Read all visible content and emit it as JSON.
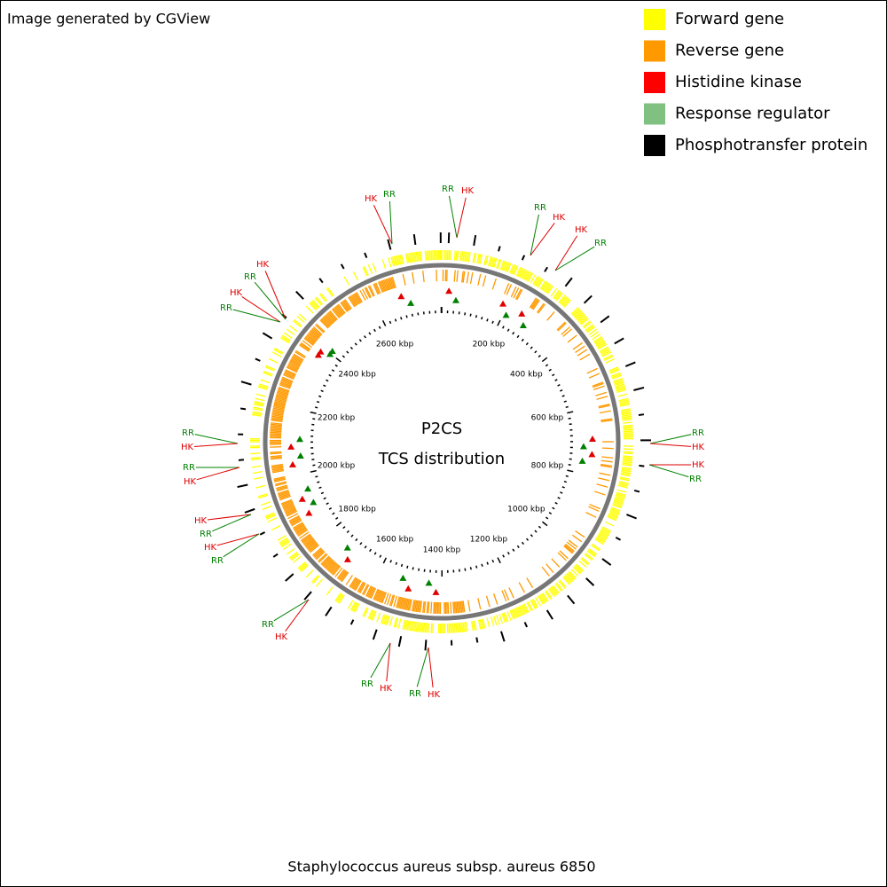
{
  "header": {
    "credit": "Image generated by CGView"
  },
  "legend": {
    "items": [
      {
        "label": "Forward gene",
        "color": "#ffff00"
      },
      {
        "label": "Reverse gene",
        "color": "#ff9900"
      },
      {
        "label": "Histidine kinase",
        "color": "#ff0000"
      },
      {
        "label": "Response regulator",
        "color": "#80c080"
      },
      {
        "label": "Phosphotransfer protein",
        "color": "#000000"
      }
    ]
  },
  "center": {
    "title": "P2CS",
    "subtitle": "TCS distribution"
  },
  "ruler": {
    "labels": [
      "200 kbp",
      "400 kbp",
      "600 kbp",
      "800 kbp",
      "1000 kbp",
      "1200 kbp",
      "1400 kbp",
      "1600 kbp",
      "1800 kbp",
      "2000 kbp",
      "2200 kbp",
      "2400 kbp",
      "2600 kbp"
    ]
  },
  "features": [
    {
      "label": "HK",
      "color": "#e00000"
    },
    {
      "label": "RR",
      "color": "#008000"
    },
    {
      "label": "RR",
      "color": "#008000"
    },
    {
      "label": "HK",
      "color": "#e00000"
    },
    {
      "label": "RR",
      "color": "#008000"
    },
    {
      "label": "HK",
      "color": "#e00000"
    },
    {
      "label": "HK",
      "color": "#e00000"
    },
    {
      "label": "RR",
      "color": "#008000"
    },
    {
      "label": "RR",
      "color": "#008000"
    },
    {
      "label": "HK",
      "color": "#e00000"
    },
    {
      "label": "HK",
      "color": "#e00000"
    },
    {
      "label": "RR",
      "color": "#008000"
    },
    {
      "label": "HK",
      "color": "#e00000"
    },
    {
      "label": "RR",
      "color": "#008000"
    },
    {
      "label": "HK",
      "color": "#e00000"
    },
    {
      "label": "RR",
      "color": "#008000"
    },
    {
      "label": "RR",
      "color": "#008000"
    },
    {
      "label": "HK",
      "color": "#e00000"
    },
    {
      "label": "RR",
      "color": "#008000"
    },
    {
      "label": "HK",
      "color": "#e00000"
    },
    {
      "label": "HK",
      "color": "#e00000"
    },
    {
      "label": "RR",
      "color": "#008000"
    },
    {
      "label": "HK",
      "color": "#e00000"
    },
    {
      "label": "RR",
      "color": "#008000"
    },
    {
      "label": "RR",
      "color": "#008000"
    },
    {
      "label": "HK",
      "color": "#e00000"
    },
    {
      "label": "RR",
      "color": "#008000"
    },
    {
      "label": "HK",
      "color": "#e00000"
    },
    {
      "label": "RR",
      "color": "#008000"
    },
    {
      "label": "HK",
      "color": "#e00000"
    }
  ],
  "footer": {
    "caption": "Staphylococcus aureus subsp. aureus 6850"
  }
}
